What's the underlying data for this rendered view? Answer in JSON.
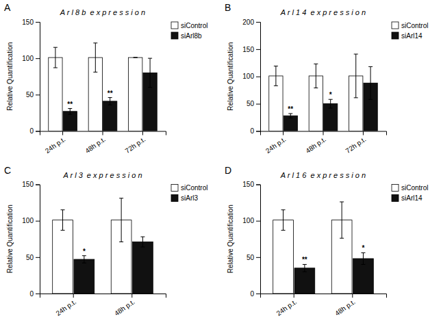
{
  "chart_data": [
    {
      "type": "bar",
      "panel_label": "A",
      "title": "A r l 8 b  e x p r e s s i o n",
      "y_label": "Relative Quantification",
      "categories": [
        "24h p.t.",
        "48h p.t.",
        "72h p.t."
      ],
      "series": [
        {
          "name": "siControl",
          "color": "#ffffff",
          "values": [
            101,
            101,
            101
          ],
          "errors": [
            14,
            20,
            0
          ]
        },
        {
          "name": "siArl8b",
          "color": "#111111",
          "values": [
            27,
            41,
            80
          ],
          "errors": [
            4,
            5,
            20
          ],
          "annotations": [
            "**",
            "**",
            null
          ]
        }
      ],
      "ylim": [
        0,
        150
      ],
      "yticks": [
        0,
        50,
        100,
        150
      ],
      "grid": false,
      "legend": "upper right"
    },
    {
      "type": "bar",
      "panel_label": "B",
      "title": "A r l 1 4  e x p r e s s i o n",
      "y_label": "Relative Quantification",
      "categories": [
        "24h p.t.",
        "48h p.t.",
        "72h p.t."
      ],
      "series": [
        {
          "name": "siControl",
          "color": "#ffffff",
          "values": [
            101,
            101,
            101
          ],
          "errors": [
            18,
            22,
            40
          ]
        },
        {
          "name": "siArl14",
          "color": "#111111",
          "values": [
            28,
            50,
            88
          ],
          "errors": [
            4,
            8,
            30
          ],
          "annotations": [
            "**",
            "*",
            null
          ]
        }
      ],
      "ylim": [
        0,
        200
      ],
      "yticks": [
        0,
        50,
        100,
        150,
        200
      ],
      "grid": false,
      "legend": "upper right"
    },
    {
      "type": "bar",
      "panel_label": "C",
      "title": "A r l 3  e x p r e s s i o n",
      "y_label": "Relative Quantification",
      "categories": [
        "24h p.t.",
        "48h p.t."
      ],
      "series": [
        {
          "name": "siControl",
          "color": "#ffffff",
          "values": [
            101,
            101
          ],
          "errors": [
            14,
            30
          ]
        },
        {
          "name": "siArl3",
          "color": "#111111",
          "values": [
            47,
            71
          ],
          "errors": [
            5,
            7
          ],
          "annotations": [
            "*",
            null
          ]
        }
      ],
      "ylim": [
        0,
        150
      ],
      "yticks": [
        0,
        50,
        100,
        150
      ],
      "grid": false,
      "legend": "upper right"
    },
    {
      "type": "bar",
      "panel_label": "D",
      "title": "A r l 1 6  e x p r e s s i o n",
      "y_label": "Relative Quantification",
      "categories": [
        "24h p.t.",
        "48h p.t."
      ],
      "series": [
        {
          "name": "siControl",
          "color": "#ffffff",
          "values": [
            101,
            101
          ],
          "errors": [
            14,
            25
          ]
        },
        {
          "name": "siArl14",
          "color": "#111111",
          "values": [
            35,
            48
          ],
          "errors": [
            5,
            8
          ],
          "annotations": [
            "**",
            "*"
          ]
        }
      ],
      "ylim": [
        0,
        150
      ],
      "yticks": [
        0,
        50,
        100,
        150
      ],
      "grid": false,
      "legend": "upper right"
    }
  ]
}
